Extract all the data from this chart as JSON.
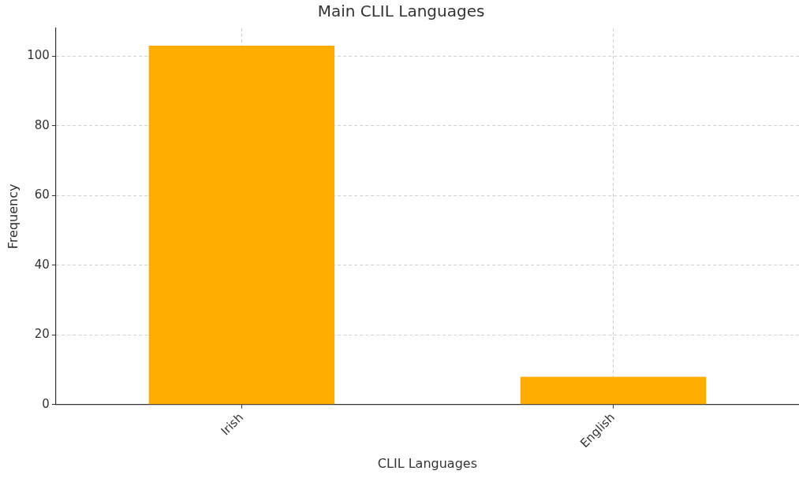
{
  "chart_data": {
    "type": "bar",
    "title": "Main CLIL Languages",
    "xlabel": "CLIL Languages",
    "ylabel": "Frequency",
    "categories": [
      "Irish",
      "English"
    ],
    "values": [
      103,
      8
    ],
    "color": "#ffae00",
    "ylim": [
      0,
      108
    ],
    "yticks": [
      0,
      20,
      40,
      60,
      80,
      100
    ],
    "grid": true,
    "legend": false
  }
}
